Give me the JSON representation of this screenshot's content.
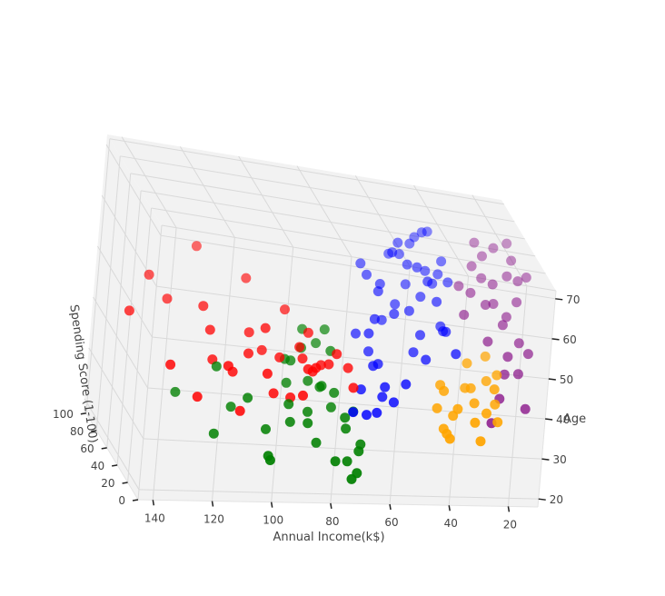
{
  "chart_data": {
    "type": "scatter3d",
    "title": "",
    "xlabel": "Annual Income(k$)",
    "ylabel": "Age",
    "zlabel": "Spending Score (1-100)",
    "xlim": [
      10,
      145
    ],
    "ylim": [
      18,
      72
    ],
    "zlim": [
      0,
      105
    ],
    "xticks": [
      20,
      40,
      60,
      80,
      100,
      120,
      140
    ],
    "yticks": [
      20,
      30,
      40,
      50,
      60,
      70
    ],
    "zticks": [
      0,
      20,
      40,
      60,
      80,
      100
    ],
    "grid": true,
    "legend": "none",
    "colors": {
      "red": "#ff0000",
      "blue": "#0000ff",
      "green": "#008000",
      "orange": "#ffa500",
      "purple": "#800080",
      "pane": "#f2f2f2",
      "grid": "#d9d9d9"
    },
    "series": [
      {
        "color": "red",
        "points": [
          [
            125,
            45,
            80
          ],
          [
            115,
            55,
            88
          ],
          [
            98,
            50,
            85
          ],
          [
            85,
            45,
            80
          ],
          [
            78,
            35,
            78
          ],
          [
            80,
            38,
            75
          ],
          [
            88,
            30,
            85
          ],
          [
            96,
            35,
            80
          ],
          [
            76,
            40,
            82
          ],
          [
            75,
            32,
            82
          ],
          [
            72,
            32,
            84
          ],
          [
            70,
            35,
            73
          ],
          [
            78,
            28,
            72
          ],
          [
            94,
            38,
            68
          ],
          [
            102,
            32,
            74
          ],
          [
            108,
            38,
            88
          ],
          [
            110,
            42,
            93
          ],
          [
            120,
            30,
            90
          ],
          [
            130,
            48,
            89
          ],
          [
            135,
            40,
            92
          ],
          [
            110,
            35,
            70
          ],
          [
            87,
            36,
            72
          ],
          [
            90,
            30,
            62
          ],
          [
            115,
            28,
            65
          ],
          [
            102,
            27,
            56
          ],
          [
            85,
            30,
            58
          ],
          [
            88,
            38,
            95
          ],
          [
            65,
            35,
            86
          ],
          [
            64,
            35,
            70
          ],
          [
            62,
            31,
            68
          ],
          [
            74,
            36,
            66
          ],
          [
            75,
            33,
            74
          ],
          [
            97,
            40,
            77
          ],
          [
            100,
            30,
            92
          ]
        ]
      },
      {
        "color": "blue",
        "points": [
          [
            60,
            52,
            40
          ],
          [
            55,
            55,
            45
          ],
          [
            50,
            58,
            55
          ],
          [
            48,
            45,
            42
          ],
          [
            45,
            48,
            48
          ],
          [
            40,
            52,
            40
          ],
          [
            38,
            50,
            45
          ],
          [
            35,
            48,
            55
          ],
          [
            42,
            42,
            50
          ],
          [
            47,
            35,
            55
          ],
          [
            52,
            32,
            48
          ],
          [
            55,
            35,
            50
          ],
          [
            58,
            30,
            45
          ],
          [
            62,
            30,
            42
          ],
          [
            64,
            28,
            55
          ],
          [
            65,
            36,
            40
          ],
          [
            60,
            40,
            48
          ],
          [
            52,
            50,
            60
          ],
          [
            48,
            52,
            55
          ],
          [
            44,
            55,
            58
          ],
          [
            40,
            58,
            60
          ],
          [
            38,
            60,
            62
          ],
          [
            42,
            60,
            64
          ],
          [
            45,
            66,
            72
          ],
          [
            50,
            62,
            70
          ],
          [
            56,
            55,
            68
          ],
          [
            58,
            48,
            62
          ],
          [
            60,
            45,
            60
          ],
          [
            55,
            52,
            75
          ],
          [
            50,
            60,
            82
          ],
          [
            45,
            58,
            80
          ],
          [
            40,
            65,
            85
          ],
          [
            42,
            58,
            78
          ],
          [
            48,
            62,
            84
          ],
          [
            38,
            55,
            78
          ],
          [
            36,
            52,
            70
          ],
          [
            30,
            42,
            60
          ],
          [
            60,
            56,
            72
          ],
          [
            62,
            58,
            74
          ],
          [
            40,
            67,
            76
          ],
          [
            46,
            64,
            74
          ],
          [
            55,
            63,
            63
          ],
          [
            58,
            35,
            38
          ],
          [
            60,
            42,
            40
          ],
          [
            64,
            45,
            38
          ],
          [
            68,
            48,
            42
          ],
          [
            36,
            62,
            68
          ],
          [
            34,
            58,
            64
          ]
        ]
      },
      {
        "color": "green",
        "points": [
          [
            130,
            35,
            28
          ],
          [
            117,
            28,
            22
          ],
          [
            110,
            32,
            32
          ],
          [
            98,
            28,
            30
          ],
          [
            96,
            22,
            32
          ],
          [
            94,
            20,
            38
          ],
          [
            88,
            28,
            40
          ],
          [
            82,
            30,
            42
          ],
          [
            80,
            25,
            33
          ],
          [
            74,
            22,
            28
          ],
          [
            70,
            20,
            18
          ],
          [
            71,
            23,
            23
          ],
          [
            68,
            21,
            20
          ],
          [
            65,
            25,
            33
          ],
          [
            66,
            24,
            30
          ],
          [
            70,
            28,
            35
          ],
          [
            75,
            32,
            38
          ],
          [
            78,
            35,
            45
          ],
          [
            90,
            40,
            48
          ],
          [
            84,
            42,
            52
          ],
          [
            80,
            44,
            48
          ],
          [
            83,
            45,
            58
          ],
          [
            75,
            45,
            60
          ],
          [
            72,
            40,
            62
          ],
          [
            86,
            38,
            58
          ],
          [
            100,
            30,
            55
          ],
          [
            110,
            35,
            62
          ],
          [
            76,
            34,
            52
          ],
          [
            72,
            33,
            50
          ],
          [
            66,
            30,
            45
          ],
          [
            68,
            28,
            48
          ],
          [
            82,
            36,
            46
          ],
          [
            90,
            36,
            42
          ],
          [
            87,
            30,
            50
          ],
          [
            81,
            27,
            45
          ]
        ]
      },
      {
        "color": "orange",
        "points": [
          [
            15,
            25,
            75
          ],
          [
            12,
            30,
            80
          ],
          [
            18,
            22,
            78
          ],
          [
            20,
            28,
            72
          ],
          [
            22,
            32,
            70
          ],
          [
            25,
            26,
            74
          ],
          [
            18,
            35,
            65
          ],
          [
            15,
            30,
            62
          ],
          [
            28,
            20,
            68
          ],
          [
            30,
            30,
            75
          ],
          [
            32,
            32,
            72
          ],
          [
            24,
            38,
            70
          ],
          [
            14,
            36,
            68
          ],
          [
            12,
            24,
            70
          ],
          [
            26,
            34,
            60
          ],
          [
            32,
            24,
            60
          ],
          [
            20,
            42,
            60
          ],
          [
            18,
            20,
            66
          ],
          [
            28,
            26,
            66
          ],
          [
            34,
            28,
            64
          ],
          [
            30,
            22,
            64
          ]
        ]
      },
      {
        "color": "purple",
        "points": [
          [
            15,
            60,
            40
          ],
          [
            18,
            65,
            45
          ],
          [
            22,
            62,
            48
          ],
          [
            25,
            58,
            42
          ],
          [
            28,
            65,
            38
          ],
          [
            20,
            55,
            35
          ],
          [
            15,
            52,
            30
          ],
          [
            12,
            50,
            28
          ],
          [
            18,
            48,
            32
          ],
          [
            24,
            50,
            38
          ],
          [
            30,
            60,
            44
          ],
          [
            26,
            68,
            50
          ],
          [
            16,
            68,
            50
          ],
          [
            14,
            64,
            46
          ],
          [
            20,
            45,
            25
          ],
          [
            22,
            40,
            20
          ],
          [
            25,
            35,
            15
          ],
          [
            32,
            55,
            42
          ],
          [
            30,
            66,
            46
          ],
          [
            35,
            62,
            40
          ],
          [
            28,
            70,
            55
          ],
          [
            12,
            66,
            42
          ],
          [
            18,
            72,
            50
          ],
          [
            22,
            70,
            52
          ],
          [
            15,
            40,
            10
          ],
          [
            16,
            46,
            22
          ],
          [
            20,
            58,
            30
          ],
          [
            24,
            60,
            34
          ]
        ]
      }
    ]
  }
}
